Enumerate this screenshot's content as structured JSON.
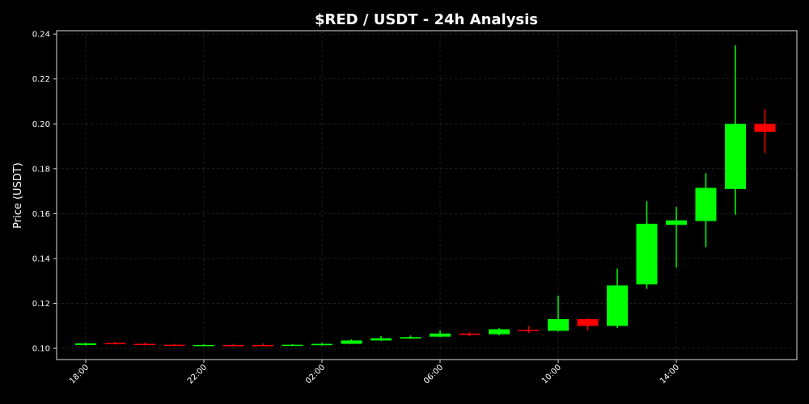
{
  "chart_data": {
    "type": "candlestick",
    "title": "$RED / USDT - 24h Analysis",
    "y_label": "Price (USDT)",
    "categories": [
      "18:00",
      null,
      null,
      null,
      "22:00",
      null,
      null,
      null,
      "02:00",
      null,
      null,
      null,
      "06:00",
      null,
      null,
      null,
      "10:00",
      null,
      null,
      null,
      "14:00",
      null,
      null,
      null
    ],
    "open": [
      0.1015,
      0.1024,
      0.102,
      0.1016,
      0.1013,
      0.1015,
      0.1015,
      0.1012,
      0.1014,
      0.102,
      0.1035,
      0.1044,
      0.1052,
      0.1066,
      0.1063,
      0.1082,
      0.1078,
      0.113,
      0.11,
      0.1285,
      0.155,
      0.1567,
      0.171,
      0.2
    ],
    "high": [
      0.1025,
      0.103,
      0.1025,
      0.102,
      0.1018,
      0.102,
      0.1022,
      0.1019,
      0.1024,
      0.104,
      0.1055,
      0.1057,
      0.108,
      0.1072,
      0.109,
      0.11,
      0.1235,
      0.1135,
      0.1355,
      0.1655,
      0.163,
      0.178,
      0.235,
      0.2065
    ],
    "low": [
      0.1012,
      0.1017,
      0.1013,
      0.1011,
      0.1011,
      0.101,
      0.101,
      0.101,
      0.1012,
      0.102,
      0.1033,
      0.1042,
      0.105,
      0.1055,
      0.1058,
      0.1068,
      0.1075,
      0.108,
      0.109,
      0.1265,
      0.136,
      0.145,
      0.1595,
      0.187
    ],
    "close": [
      0.1022,
      0.102,
      0.1016,
      0.1014,
      0.1015,
      0.1012,
      0.1012,
      0.1016,
      0.102,
      0.1035,
      0.1045,
      0.105,
      0.1066,
      0.106,
      0.1085,
      0.1077,
      0.113,
      0.11,
      0.128,
      0.1555,
      0.157,
      0.1715,
      0.2,
      0.1965
    ],
    "up_color": "#00ff00",
    "down_color": "#ff0000",
    "ylim": [
      0.095,
      0.2415
    ],
    "yticks": [
      {
        "value": 0.1,
        "label": "0.10"
      },
      0.12,
      0.14,
      0.16,
      0.18,
      {
        "value": 0.2,
        "label": "0.20"
      },
      0.22,
      0.24
    ],
    "grid": true
  }
}
